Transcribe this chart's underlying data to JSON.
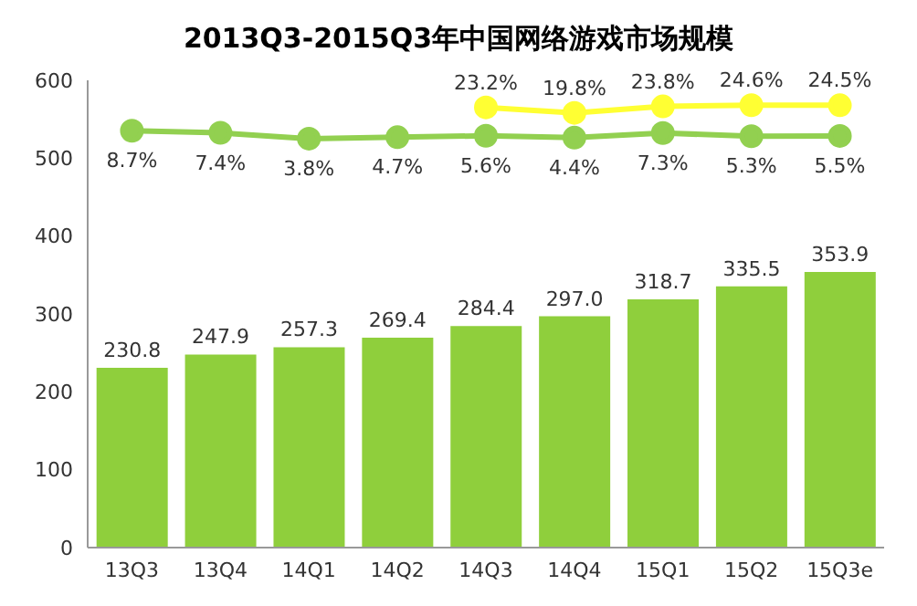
{
  "chart_data": {
    "type": "bar",
    "title": "2013Q3-2015Q3年中国网络游戏市场规模",
    "categories": [
      "13Q3",
      "13Q4",
      "14Q1",
      "14Q2",
      "14Q3",
      "14Q4",
      "15Q1",
      "15Q2",
      "15Q3e"
    ],
    "series": [
      {
        "color": "#8fcf3c",
        "values": [
          230.8,
          247.9,
          257.3,
          269.4,
          284.4,
          297.0,
          318.7,
          335.5,
          353.9
        ],
        "value_labels": [
          "230.8",
          "247.9",
          "257.3",
          "269.4",
          "284.4",
          "297.0",
          "318.7",
          "335.5",
          "353.9"
        ]
      },
      {
        "type": "line",
        "axis": "y2",
        "color": "#92d050",
        "values": [
          8.7,
          7.4,
          3.8,
          4.7,
          5.6,
          4.4,
          7.3,
          5.3,
          5.5
        ],
        "value_labels": [
          "8.7%",
          "7.4%",
          "3.8%",
          "4.7%",
          "5.6%",
          "4.4%",
          "7.3%",
          "5.3%",
          "5.5%"
        ]
      },
      {
        "type": "line",
        "axis": "y2",
        "color": "#ffff33",
        "values": [
          null,
          null,
          null,
          null,
          23.2,
          19.8,
          23.8,
          24.6,
          24.5
        ],
        "value_labels": [
          null,
          null,
          null,
          null,
          "23.2%",
          "19.8%",
          "23.8%",
          "24.6%",
          "24.5%"
        ]
      }
    ],
    "ylim": [
      0,
      600
    ],
    "yticks": [
      0,
      100,
      200,
      300,
      400,
      500,
      600
    ],
    "y2lim": [
      -250,
      40
    ],
    "marker": "circle",
    "line_style": "solid"
  }
}
